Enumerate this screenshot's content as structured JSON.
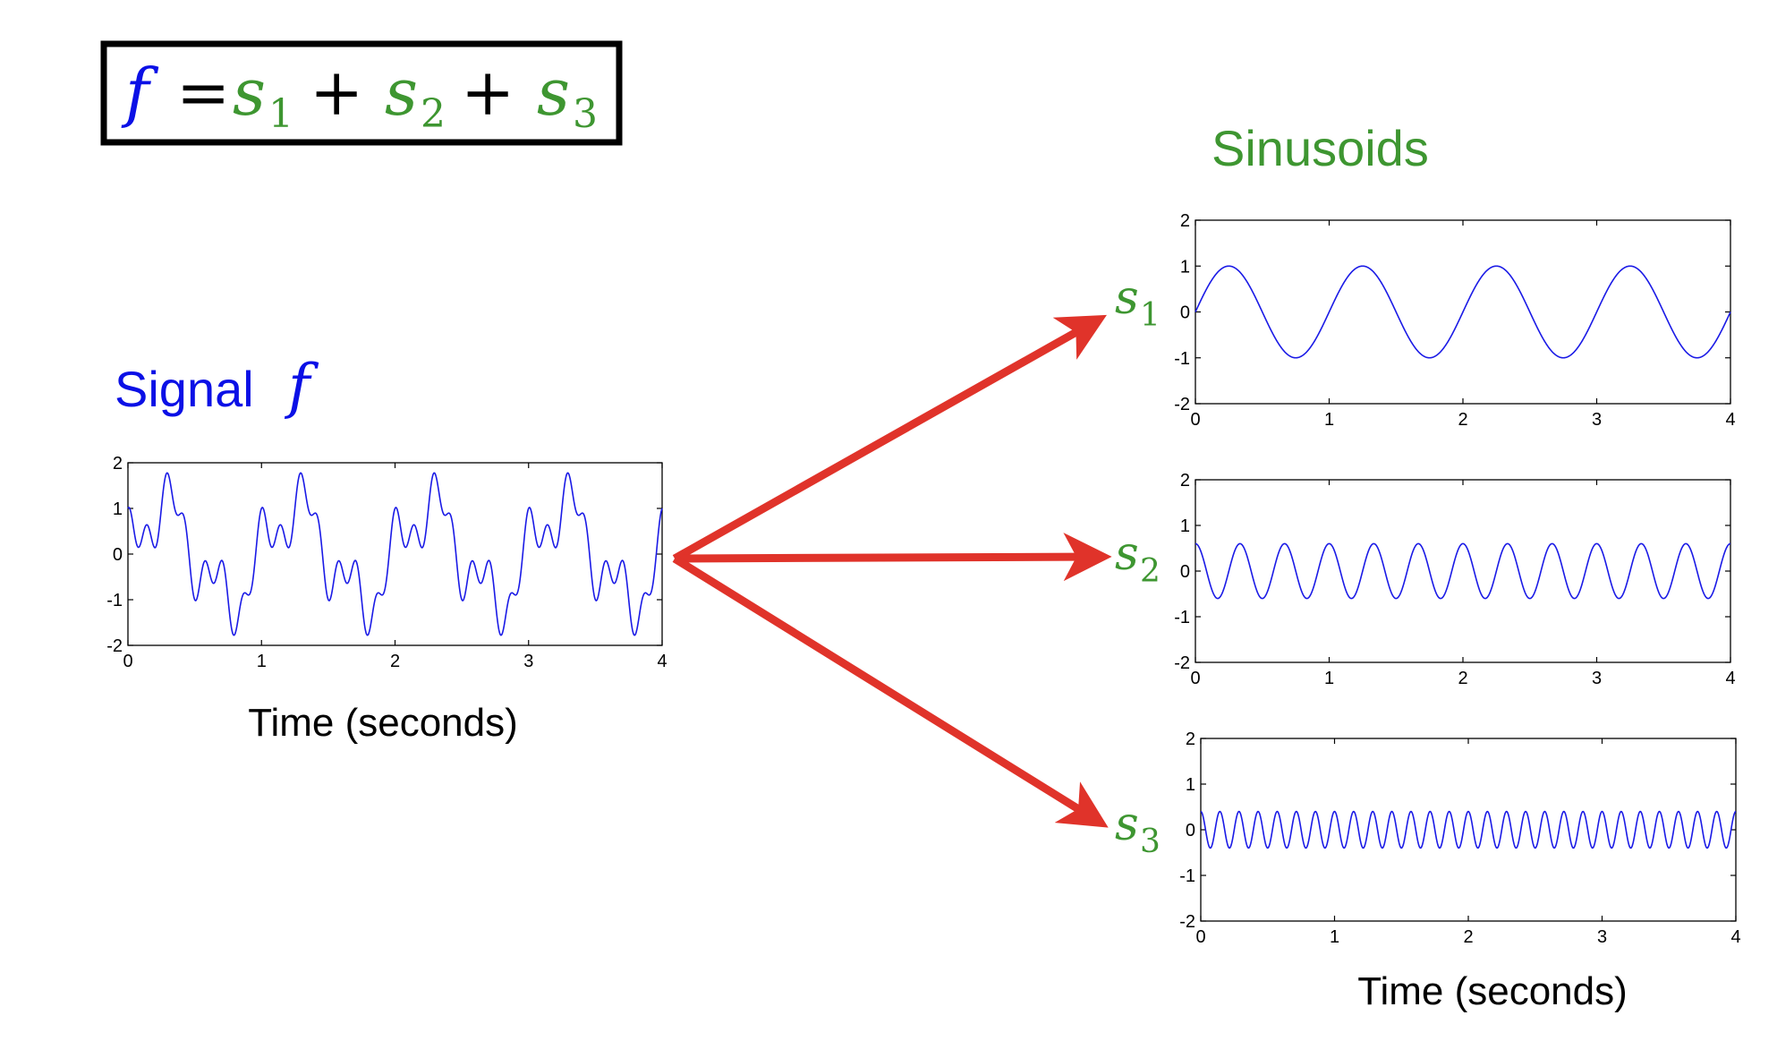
{
  "colors": {
    "signal": "#0b10e6",
    "sinusoid": "#3e9631",
    "arrow": "#e0332a",
    "trace": "#1a1ae6",
    "axis": "#000000"
  },
  "formula": {
    "f": "f",
    "eq": "=",
    "plus": "+",
    "s1": "s",
    "s1_sub": "1",
    "s2": "s",
    "s2_sub": "2",
    "s3": "s",
    "s3_sub": "3"
  },
  "signal_label": {
    "text": "Signal",
    "symbol": "f"
  },
  "sinusoids_title": "Sinusoids",
  "time_label_left": "Time (seconds)",
  "time_label_right": "Time (seconds)",
  "plot_labels": [
    {
      "sym": "s",
      "sub": "1"
    },
    {
      "sym": "s",
      "sub": "2"
    },
    {
      "sym": "s",
      "sub": "3"
    }
  ],
  "chart_data": [
    {
      "type": "line",
      "name": "f",
      "xlim": [
        0,
        4
      ],
      "ylim": [
        -2,
        2
      ],
      "xticks": [
        "0",
        "1",
        "2",
        "3",
        "4"
      ],
      "yticks": [
        "2",
        "1",
        "0",
        "-1",
        "-2"
      ],
      "xlabel": "Time (seconds)",
      "function": "sum of s1, s2, s3"
    },
    {
      "type": "line",
      "name": "s1",
      "xlim": [
        0,
        4
      ],
      "ylim": [
        -2,
        2
      ],
      "xticks": [
        "0",
        "1",
        "2",
        "3",
        "4"
      ],
      "yticks": [
        "2",
        "1",
        "0",
        "-1",
        "-2"
      ],
      "amplitude": 1.0,
      "frequency_hz": 1,
      "phase_cycles": 0
    },
    {
      "type": "line",
      "name": "s2",
      "xlim": [
        0,
        4
      ],
      "ylim": [
        -2,
        2
      ],
      "xticks": [
        "0",
        "1",
        "2",
        "3",
        "4"
      ],
      "yticks": [
        "2",
        "1",
        "0",
        "-1",
        "-2"
      ],
      "amplitude": 0.6,
      "frequency_hz": 3,
      "phase_cycles": 0.25
    },
    {
      "type": "line",
      "name": "s3",
      "xlim": [
        0,
        4
      ],
      "ylim": [
        -2,
        2
      ],
      "xticks": [
        "0",
        "1",
        "2",
        "3",
        "4"
      ],
      "yticks": [
        "2",
        "1",
        "0",
        "-1",
        "-2"
      ],
      "xlabel": "Time (seconds)",
      "amplitude": 0.4,
      "frequency_hz": 7,
      "phase_cycles": 0.25
    }
  ]
}
